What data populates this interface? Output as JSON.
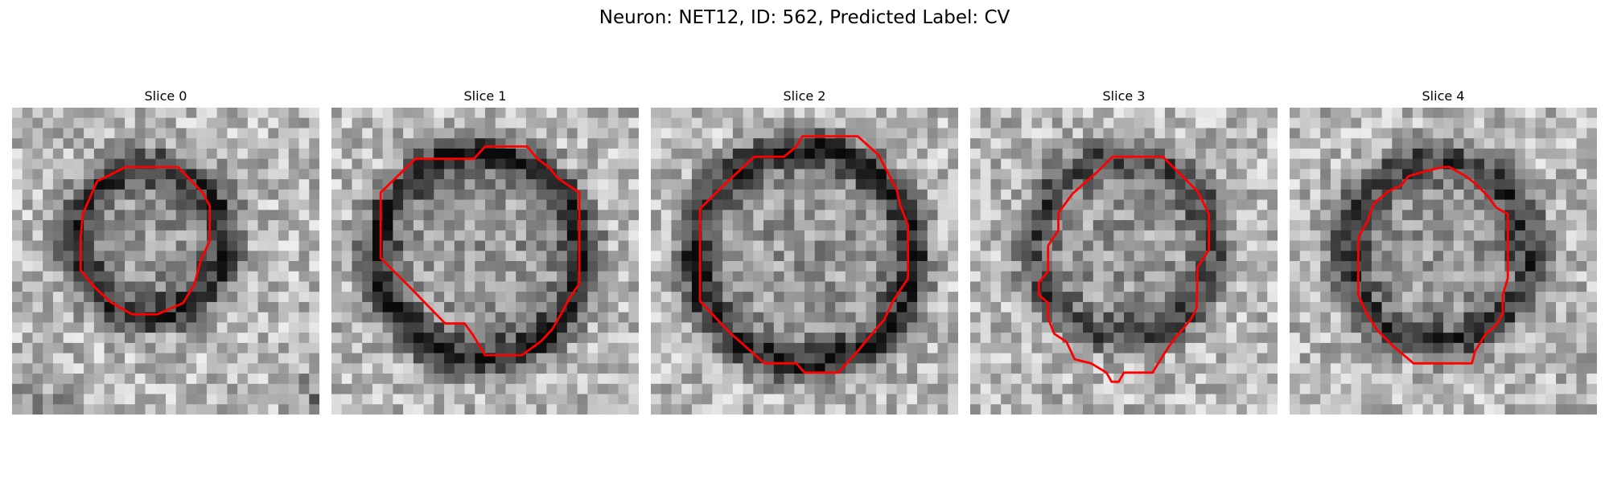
{
  "figure": {
    "title": "Neuron: NET12, ID: 562, Predicted Label: CV"
  },
  "panels": [
    {
      "title": "Slice 0"
    },
    {
      "title": "Slice 1"
    },
    {
      "title": "Slice 2"
    },
    {
      "title": "Slice 3"
    },
    {
      "title": "Slice 4"
    }
  ],
  "colors": {
    "contour": "#ff0000"
  }
}
